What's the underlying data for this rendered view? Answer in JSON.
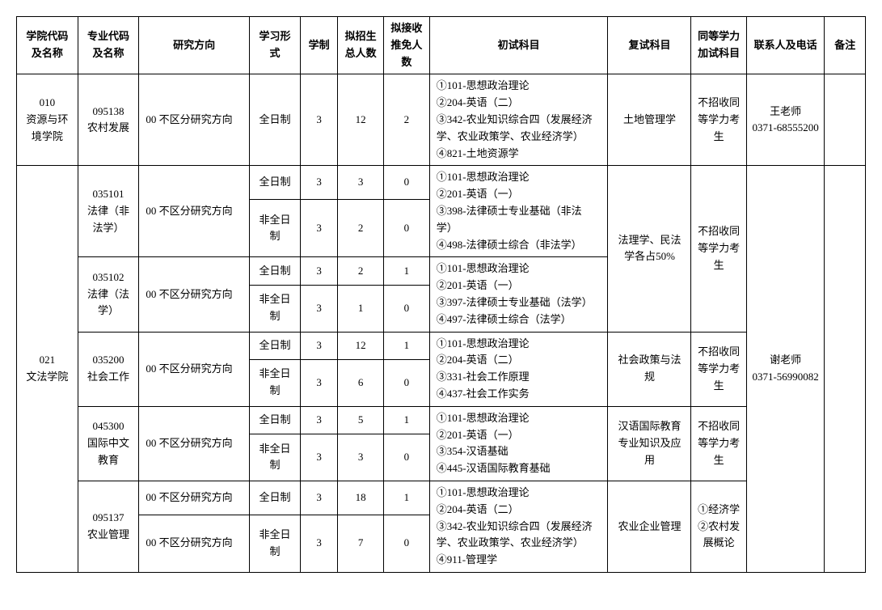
{
  "headers": {
    "college": "学院代码及名称",
    "major": "专业代码及名称",
    "direction": "研究方向",
    "study": "学习形式",
    "years": "学制",
    "enroll": "拟招生总人数",
    "exempt": "拟接收推免人数",
    "exam1": "初试科目",
    "exam2": "复试科目",
    "equiv": "同等学力加试科目",
    "contact": "联系人及电话",
    "remark": "备注"
  },
  "r1": {
    "college": "010\n资源与环境学院",
    "major": "095138\n农村发展",
    "direction": "00 不区分研究方向",
    "study": "全日制",
    "years": "3",
    "enroll": "12",
    "exempt": "2",
    "exam1": "①101-思想政治理论\n②204-英语（二）\n③342-农业知识综合四（发展经济学、农业政策学、农业经济学）\n④821-土地资源学",
    "exam2": "土地管理学",
    "equiv": "不招收同等学力考生",
    "contact": "王老师\n0371-68555200"
  },
  "college2": "021\n文法学院",
  "contact2": "谢老师\n0371-56990082",
  "m1": {
    "major": "035101\n法律（非法学）",
    "direction": "00 不区分研究方向",
    "exam1": "①101-思想政治理论\n②201-英语（一）\n③398-法律硕士专业基础（非法学）\n④498-法律硕士综合（非法学）",
    "a": {
      "study": "全日制",
      "years": "3",
      "enroll": "3",
      "exempt": "0"
    },
    "b": {
      "study": "非全日制",
      "years": "3",
      "enroll": "2",
      "exempt": "0"
    }
  },
  "law_exam2": "法理学、民法学各占50%",
  "law_equiv": "不招收同等学力考生",
  "m2": {
    "major": "035102\n法律（法学）",
    "direction": "00 不区分研究方向",
    "exam1": "①101-思想政治理论\n②201-英语（一）\n③397-法律硕士专业基础（法学）\n④497-法律硕士综合（法学）",
    "a": {
      "study": "全日制",
      "years": "3",
      "enroll": "2",
      "exempt": "1"
    },
    "b": {
      "study": "非全日制",
      "years": "3",
      "enroll": "1",
      "exempt": "0"
    }
  },
  "m3": {
    "major": "035200\n社会工作",
    "direction": "00 不区分研究方向",
    "exam1": "①101-思想政治理论\n②204-英语（二）\n③331-社会工作原理\n④437-社会工作实务",
    "exam2": "社会政策与法规",
    "equiv": "不招收同等学力考生",
    "a": {
      "study": "全日制",
      "years": "3",
      "enroll": "12",
      "exempt": "1"
    },
    "b": {
      "study": "非全日制",
      "years": "3",
      "enroll": "6",
      "exempt": "0"
    }
  },
  "m4": {
    "major": "045300\n国际中文教育",
    "direction": "00 不区分研究方向",
    "exam1": "①101-思想政治理论\n②201-英语（一）\n③354-汉语基础\n④445-汉语国际教育基础",
    "exam2": "汉语国际教育专业知识及应用",
    "equiv": "不招收同等学力考生",
    "a": {
      "study": "全日制",
      "years": "3",
      "enroll": "5",
      "exempt": "1"
    },
    "b": {
      "study": "非全日制",
      "years": "3",
      "enroll": "3",
      "exempt": "0"
    }
  },
  "m5": {
    "major": "095137\n农业管理",
    "direction_a": "00 不区分研究方向",
    "direction_b": "00 不区分研究方向",
    "exam1": "①101-思想政治理论\n②204-英语（二）\n③342-农业知识综合四（发展经济学、农业政策学、农业经济学）\n④911-管理学",
    "exam2": "农业企业管理",
    "equiv": "①经济学\n②农村发展概论",
    "a": {
      "study": "全日制",
      "years": "3",
      "enroll": "18",
      "exempt": "1"
    },
    "b": {
      "study": "非全日制",
      "years": "3",
      "enroll": "7",
      "exempt": "0"
    }
  }
}
